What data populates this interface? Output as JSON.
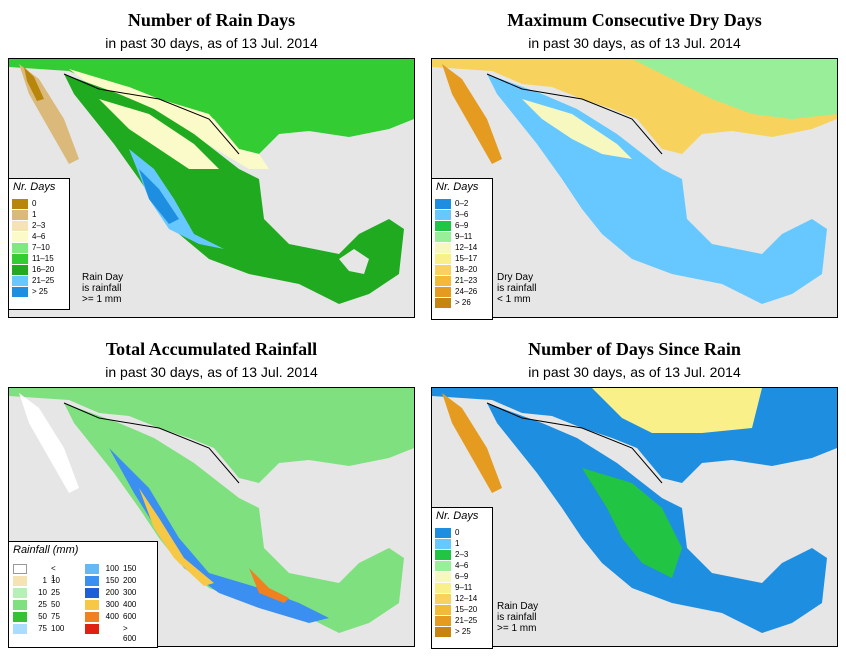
{
  "panels": [
    {
      "title": "Number of Rain Days",
      "subtitle": "in past 30 days, as of  13 Jul. 2014",
      "legend_title": "Nr. Days",
      "legend": [
        {
          "label": "0",
          "color": "#b8860b"
        },
        {
          "label": "1",
          "color": "#dab97a"
        },
        {
          "label": "2–3",
          "color": "#f5e3b3"
        },
        {
          "label": "4–6",
          "color": "#fbfbc9"
        },
        {
          "label": "7–10",
          "color": "#7fe87f"
        },
        {
          "label": "11–15",
          "color": "#33cc33"
        },
        {
          "label": "16–20",
          "color": "#1faa1f"
        },
        {
          "label": "21–25",
          "color": "#66c8ff"
        },
        {
          "label": "> 25",
          "color": "#1e8fe0"
        }
      ],
      "note": [
        "Rain Day",
        "is rainfall",
        ">= 1 mm"
      ]
    },
    {
      "title": "Maximum Consecutive Dry Days",
      "subtitle": "in past 30 days, as of  13 Jul. 2014",
      "legend_title": "Nr. Days",
      "legend": [
        {
          "label": "0–2",
          "color": "#1e8fe0"
        },
        {
          "label": "3–6",
          "color": "#66c8ff"
        },
        {
          "label": "6–9",
          "color": "#22c444"
        },
        {
          "label": "9–11",
          "color": "#99ee99"
        },
        {
          "label": "12–14",
          "color": "#f7f7c0"
        },
        {
          "label": "15–17",
          "color": "#faf08a"
        },
        {
          "label": "18–20",
          "color": "#f7d35e"
        },
        {
          "label": "21–23",
          "color": "#f2b93a"
        },
        {
          "label": "24–26",
          "color": "#e59b20"
        },
        {
          "label": "> 26",
          "color": "#c98310"
        }
      ],
      "note": [
        "Dry Day",
        "is rainfall",
        "< 1 mm"
      ]
    },
    {
      "title": "Total Accumulated Rainfall",
      "subtitle": "in past 30 days, as of  13 Jul. 2014",
      "legend_title": "Rainfall (mm)",
      "legend_cols": [
        [
          {
            "lo": "",
            "hi": "< 1",
            "color": "#ffffff"
          },
          {
            "lo": "1",
            "hi": "10",
            "color": "#f5e3b3"
          },
          {
            "lo": "10",
            "hi": "25",
            "color": "#b7efb7"
          },
          {
            "lo": "25",
            "hi": "50",
            "color": "#7fe07f"
          },
          {
            "lo": "50",
            "hi": "75",
            "color": "#33c233"
          },
          {
            "lo": "75",
            "hi": "100",
            "color": "#aadcff"
          }
        ],
        [
          {
            "lo": "100",
            "hi": "150",
            "color": "#66b8f5"
          },
          {
            "lo": "150",
            "hi": "200",
            "color": "#3a8ff0"
          },
          {
            "lo": "200",
            "hi": "300",
            "color": "#1e5fd6"
          },
          {
            "lo": "300",
            "hi": "400",
            "color": "#f7c845"
          },
          {
            "lo": "400",
            "hi": "600",
            "color": "#f08020"
          },
          {
            "lo": "",
            "hi": "> 600",
            "color": "#e02010"
          }
        ]
      ]
    },
    {
      "title": "Number of Days Since Rain",
      "subtitle": "in past 30 days, as of  13 Jul. 2014",
      "legend_title": "Nr. Days",
      "legend": [
        {
          "label": "0",
          "color": "#1e8fe0"
        },
        {
          "label": "1",
          "color": "#66c8ff"
        },
        {
          "label": "2–3",
          "color": "#22c444"
        },
        {
          "label": "4–6",
          "color": "#99ee99"
        },
        {
          "label": "6–9",
          "color": "#f7f7c0"
        },
        {
          "label": "9–11",
          "color": "#faf08a"
        },
        {
          "label": "12–14",
          "color": "#f7d35e"
        },
        {
          "label": "15–20",
          "color": "#f2b93a"
        },
        {
          "label": "21–25",
          "color": "#e59b20"
        },
        {
          "label": "> 25",
          "color": "#c98310"
        }
      ],
      "note": [
        "Rain Day",
        "is rainfall",
        ">= 1 mm"
      ]
    }
  ],
  "colors": {
    "land_gray": "#e6e6e6",
    "border": "#000000"
  }
}
